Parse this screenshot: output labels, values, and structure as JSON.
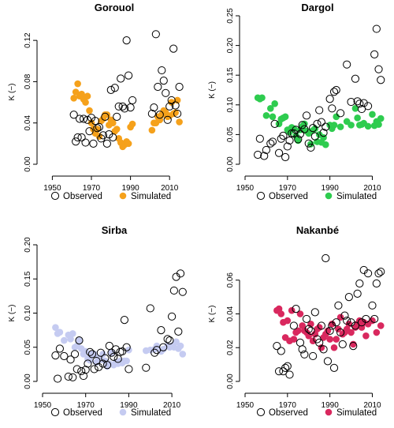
{
  "colors": {
    "observed_stroke": "#000000",
    "gorouol": "#F5A11B",
    "dargol": "#2ECC4F",
    "sirba": "#C5CBF1",
    "nakanbe": "#D9285E"
  },
  "legend_labels": {
    "observed": "Observed",
    "simulated": "Simulated"
  },
  "chart_data": [
    {
      "type": "scatter",
      "title": "Gorouol",
      "ylabel": "K (−)",
      "xlim": [
        1945,
        2020
      ],
      "ylim": [
        0,
        0.14
      ],
      "xticks": [
        1950,
        1970,
        1990,
        2010
      ],
      "yticks": [
        0.0,
        0.04,
        0.08,
        0.12
      ],
      "ytick_labels": [
        "0.00",
        "0.04",
        "0.08",
        "0.12"
      ],
      "sim_color": "#F5A11B",
      "legend": "bottom",
      "series": [
        {
          "name": "Observed",
          "x": [
            1961,
            1962,
            1963,
            1964,
            1965,
            1966,
            1967,
            1968,
            1969,
            1970,
            1971,
            1972,
            1973,
            1974,
            1975,
            1976,
            1977,
            1978,
            1979,
            1980,
            1981,
            1982,
            1983,
            1984,
            1985,
            1986,
            1987,
            1988,
            1989,
            1990,
            1991,
            2001,
            2002,
            2003,
            2004,
            2005,
            2006,
            2007,
            2008,
            2009,
            2010,
            2011,
            2012,
            2013,
            2014,
            2015
          ],
          "y": [
            0.048,
            0.022,
            0.026,
            0.044,
            0.026,
            0.044,
            0.021,
            0.043,
            0.032,
            0.045,
            0.02,
            0.042,
            0.035,
            0.036,
            0.025,
            0.028,
            0.046,
            0.02,
            0.029,
            0.072,
            0.026,
            0.074,
            0.046,
            0.056,
            0.083,
            0.056,
            0.054,
            0.12,
            0.086,
            0.055,
            0.062,
            0.049,
            0.055,
            0.126,
            0.075,
            0.048,
            0.091,
            0.081,
            0.069,
            0.043,
            0.056,
            0.062,
            0.112,
            0.057,
            0.049,
            0.075
          ]
        },
        {
          "name": "Simulated",
          "x": [
            1961,
            1962,
            1963,
            1964,
            1965,
            1966,
            1967,
            1968,
            1969,
            1970,
            1971,
            1972,
            1973,
            1974,
            1975,
            1976,
            1977,
            1978,
            1979,
            1980,
            1981,
            1982,
            1983,
            1984,
            1985,
            1986,
            1987,
            1988,
            1989,
            1990,
            1991,
            2001,
            2002,
            2003,
            2004,
            2005,
            2006,
            2007,
            2008,
            2009,
            2010,
            2011,
            2012,
            2013,
            2014,
            2015
          ],
          "y": [
            0.064,
            0.07,
            0.078,
            0.066,
            0.068,
            0.063,
            0.06,
            0.066,
            0.052,
            0.04,
            0.034,
            0.03,
            0.034,
            0.027,
            0.042,
            0.044,
            0.048,
            0.048,
            0.038,
            0.043,
            0.04,
            0.032,
            0.034,
            0.025,
            0.021,
            0.017,
            0.019,
            0.022,
            0.02,
            0.036,
            0.039,
            0.033,
            0.04,
            0.04,
            0.046,
            0.043,
            0.048,
            0.052,
            0.05,
            0.046,
            0.047,
            0.06,
            0.049,
            0.05,
            0.062,
            0.041
          ]
        }
      ]
    },
    {
      "type": "scatter",
      "title": "Dargol",
      "ylabel": "K (−)",
      "xlim": [
        1950,
        2018
      ],
      "ylim": [
        0,
        0.25
      ],
      "xticks": [
        1950,
        1970,
        1990,
        2010
      ],
      "yticks": [
        0.0,
        0.05,
        0.1,
        0.15,
        0.2,
        0.25
      ],
      "ytick_labels": [
        "0.00",
        "0.05",
        "0.10",
        "0.15",
        "0.20",
        "0.25"
      ],
      "sim_color": "#2ECC4F",
      "legend": "bottom",
      "series": [
        {
          "name": "Observed",
          "x": [
            1956,
            1957,
            1959,
            1960,
            1962,
            1963,
            1964,
            1966,
            1967,
            1968,
            1969,
            1970,
            1971,
            1972,
            1973,
            1974,
            1975,
            1976,
            1977,
            1978,
            1979,
            1980,
            1981,
            1982,
            1983,
            1984,
            1985,
            1986,
            1987,
            1988,
            1990,
            1991,
            1992,
            1993,
            1995,
            1998,
            2000,
            2002,
            2003,
            2004,
            2005,
            2006,
            2008,
            2011,
            2012,
            2013,
            2014
          ],
          "y": [
            0.016,
            0.043,
            0.014,
            0.024,
            0.035,
            0.038,
            0.068,
            0.019,
            0.043,
            0.048,
            0.012,
            0.03,
            0.04,
            0.052,
            0.052,
            0.058,
            0.042,
            0.051,
            0.066,
            0.059,
            0.082,
            0.035,
            0.028,
            0.061,
            0.047,
            0.068,
            0.091,
            0.071,
            0.053,
            0.063,
            0.11,
            0.094,
            0.122,
            0.125,
            0.086,
            0.168,
            0.105,
            0.144,
            0.106,
            0.102,
            0.093,
            0.103,
            0.098,
            0.185,
            0.228,
            0.16,
            0.142
          ]
        },
        {
          "name": "Simulated",
          "x": [
            1956,
            1957,
            1958,
            1960,
            1962,
            1963,
            1964,
            1966,
            1967,
            1968,
            1969,
            1970,
            1971,
            1972,
            1973,
            1974,
            1975,
            1976,
            1977,
            1978,
            1979,
            1980,
            1981,
            1982,
            1983,
            1984,
            1985,
            1986,
            1987,
            1988,
            1990,
            1991,
            1992,
            1993,
            1995,
            1998,
            2000,
            2002,
            2003,
            2004,
            2005,
            2006,
            2008,
            2010,
            2011,
            2012,
            2013,
            2014
          ],
          "y": [
            0.112,
            0.11,
            0.112,
            0.082,
            0.094,
            0.08,
            0.102,
            0.068,
            0.076,
            0.078,
            0.08,
            0.058,
            0.054,
            0.062,
            0.06,
            0.048,
            0.04,
            0.058,
            0.064,
            0.068,
            0.056,
            0.052,
            0.034,
            0.057,
            0.06,
            0.038,
            0.05,
            0.037,
            0.045,
            0.033,
            0.066,
            0.06,
            0.066,
            0.08,
            0.063,
            0.072,
            0.066,
            0.094,
            0.078,
            0.066,
            0.067,
            0.069,
            0.064,
            0.084,
            0.065,
            0.072,
            0.067,
            0.077
          ]
        }
      ]
    },
    {
      "type": "scatter",
      "title": "Sirba",
      "ylabel": "K (−)",
      "xlim": [
        1950,
        2018
      ],
      "ylim": [
        0,
        0.2
      ],
      "xticks": [
        1950,
        1970,
        1990,
        2010
      ],
      "yticks": [
        0.0,
        0.05,
        0.1,
        0.15,
        0.2
      ],
      "ytick_labels": [
        "0.00",
        "0.05",
        "0.10",
        "0.15",
        "0.20"
      ],
      "sim_color": "#C5CBF1",
      "legend": "bottom",
      "series": [
        {
          "name": "Observed",
          "x": [
            1956,
            1957,
            1958,
            1960,
            1962,
            1963,
            1964,
            1965,
            1966,
            1967,
            1968,
            1969,
            1970,
            1971,
            1972,
            1973,
            1974,
            1975,
            1976,
            1977,
            1978,
            1979,
            1980,
            1981,
            1982,
            1983,
            1984,
            1985,
            1986,
            1987,
            1988,
            1989,
            1990,
            1998,
            2000,
            2002,
            2003,
            2005,
            2006,
            2008,
            2009,
            2010,
            2011,
            2012,
            2013,
            2014,
            2015
          ],
          "y": [
            0.038,
            0.004,
            0.048,
            0.037,
            0.007,
            0.032,
            0.006,
            0.04,
            0.018,
            0.06,
            0.015,
            0.008,
            0.017,
            0.026,
            0.043,
            0.04,
            0.018,
            0.03,
            0.021,
            0.042,
            0.026,
            0.034,
            0.024,
            0.052,
            0.042,
            0.036,
            0.047,
            0.033,
            0.043,
            0.044,
            0.09,
            0.05,
            0.018,
            0.02,
            0.107,
            0.042,
            0.046,
            0.075,
            0.05,
            0.062,
            0.06,
            0.095,
            0.133,
            0.153,
            0.073,
            0.158,
            0.131
          ]
        },
        {
          "name": "Simulated",
          "x": [
            1956,
            1957,
            1958,
            1960,
            1962,
            1963,
            1964,
            1965,
            1966,
            1967,
            1968,
            1969,
            1970,
            1971,
            1972,
            1973,
            1974,
            1975,
            1976,
            1977,
            1978,
            1979,
            1980,
            1981,
            1982,
            1983,
            1984,
            1985,
            1986,
            1987,
            1988,
            1989,
            1990,
            1998,
            2000,
            2002,
            2003,
            2005,
            2006,
            2008,
            2009,
            2010,
            2011,
            2012,
            2013,
            2014,
            2015
          ],
          "y": [
            0.079,
            0.07,
            0.072,
            0.06,
            0.068,
            0.062,
            0.07,
            0.05,
            0.052,
            0.06,
            0.048,
            0.04,
            0.044,
            0.033,
            0.031,
            0.04,
            0.04,
            0.028,
            0.034,
            0.032,
            0.04,
            0.03,
            0.022,
            0.026,
            0.042,
            0.024,
            0.028,
            0.026,
            0.03,
            0.027,
            0.03,
            0.03,
            0.046,
            0.045,
            0.046,
            0.047,
            0.052,
            0.044,
            0.047,
            0.052,
            0.05,
            0.052,
            0.05,
            0.058,
            0.048,
            0.052,
            0.04
          ]
        }
      ]
    },
    {
      "type": "scatter",
      "title": "Nakanbé",
      "ylabel": "K (−)",
      "xlim": [
        1950,
        2018
      ],
      "ylim": [
        0,
        0.08
      ],
      "xticks": [
        1950,
        1970,
        1990,
        2010
      ],
      "yticks": [
        0.0,
        0.02,
        0.04,
        0.06
      ],
      "ytick_labels": [
        "0.00",
        "0.02",
        "0.04",
        "0.06"
      ],
      "sim_color": "#D9285E",
      "legend": "bottom",
      "series": [
        {
          "name": "Observed",
          "x": [
            1965,
            1966,
            1967,
            1968,
            1969,
            1970,
            1971,
            1973,
            1974,
            1976,
            1977,
            1978,
            1979,
            1980,
            1981,
            1982,
            1983,
            1984,
            1985,
            1986,
            1987,
            1988,
            1989,
            1990,
            1991,
            1992,
            1993,
            1994,
            1995,
            1996,
            1997,
            1998,
            1999,
            2000,
            2001,
            2002,
            2003,
            2004,
            2005,
            2006,
            2007,
            2008,
            2010,
            2011,
            2012,
            2013,
            2014
          ],
          "y": [
            0.021,
            0.006,
            0.018,
            0.006,
            0.008,
            0.009,
            0.004,
            0.033,
            0.043,
            0.023,
            0.019,
            0.016,
            0.037,
            0.031,
            0.03,
            0.015,
            0.041,
            0.025,
            0.023,
            0.033,
            0.019,
            0.073,
            0.012,
            0.03,
            0.033,
            0.008,
            0.035,
            0.045,
            0.029,
            0.022,
            0.039,
            0.036,
            0.05,
            0.035,
            0.021,
            0.033,
            0.052,
            0.058,
            0.035,
            0.066,
            0.037,
            0.064,
            0.045,
            0.037,
            0.058,
            0.064,
            0.065
          ]
        },
        {
          "name": "Simulated",
          "x": [
            1965,
            1966,
            1967,
            1968,
            1969,
            1970,
            1971,
            1972,
            1973,
            1974,
            1975,
            1976,
            1977,
            1978,
            1979,
            1980,
            1981,
            1982,
            1983,
            1984,
            1985,
            1986,
            1987,
            1988,
            1989,
            1990,
            1991,
            1992,
            1993,
            1994,
            1995,
            1996,
            1997,
            1998,
            1999,
            2000,
            2001,
            2002,
            2003,
            2004,
            2005,
            2006,
            2007,
            2008,
            2010,
            2012,
            2014
          ],
          "y": [
            0.042,
            0.043,
            0.04,
            0.035,
            0.026,
            0.036,
            0.024,
            0.042,
            0.025,
            0.029,
            0.03,
            0.04,
            0.033,
            0.03,
            0.029,
            0.027,
            0.034,
            0.024,
            0.028,
            0.031,
            0.032,
            0.02,
            0.026,
            0.028,
            0.03,
            0.025,
            0.034,
            0.02,
            0.025,
            0.031,
            0.038,
            0.028,
            0.029,
            0.031,
            0.034,
            0.029,
            0.022,
            0.032,
            0.034,
            0.036,
            0.032,
            0.035,
            0.027,
            0.034,
            0.036,
            0.029,
            0.033
          ]
        }
      ]
    }
  ]
}
